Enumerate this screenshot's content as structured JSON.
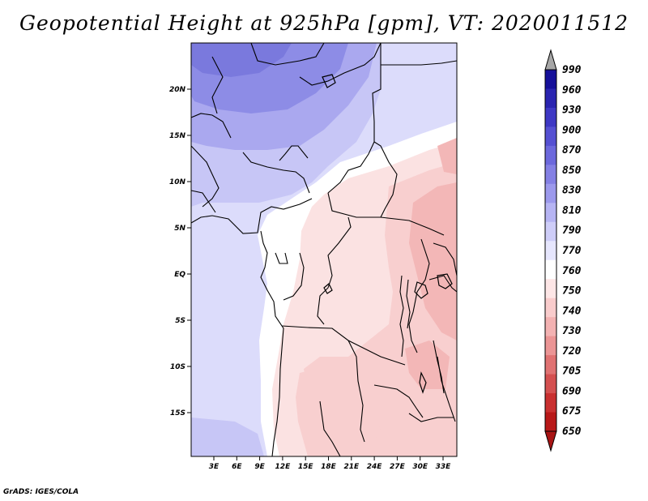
{
  "title": "Geopotential Height at 925hPa [gpm], VT: 2020011512",
  "credit": "GrADS: IGES/COLA",
  "lat_labels": [
    "20N",
    "15N",
    "10N",
    "5N",
    "EQ",
    "5S",
    "10S",
    "15S"
  ],
  "lon_labels": [
    "3E",
    "6E",
    "9E",
    "12E",
    "15E",
    "18E",
    "21E",
    "24E",
    "27E",
    "30E",
    "33E"
  ],
  "colorbar": {
    "labels": [
      "990",
      "960",
      "930",
      "900",
      "870",
      "850",
      "830",
      "810",
      "790",
      "770",
      "760",
      "750",
      "740",
      "730",
      "720",
      "705",
      "690",
      "675",
      "650"
    ],
    "colors": [
      "#16109a",
      "#2a24b0",
      "#3e38c4",
      "#5550d2",
      "#6c68dc",
      "#8480e4",
      "#9c99ec",
      "#b6b4f3",
      "#cecdf8",
      "#e6e6fd",
      "#ffffff",
      "#fde6e6",
      "#f9cccc",
      "#f3b2b2",
      "#eb9595",
      "#e07272",
      "#d45050",
      "#c93030",
      "#b81818"
    ],
    "top_arrow_color": "#a6a6a6",
    "bottom_arrow_color": "#a81414"
  },
  "palette": {
    "violet_deep": "#8d8ce6",
    "violet_mid": "#aaa8ef",
    "violet_light": "#c7c6f6",
    "lavender": "#dcdcfb",
    "white": "#ffffff",
    "pink_light": "#fbe2e2",
    "pink_mid": "#f8cfcf",
    "pink_deep": "#f3b7b7"
  }
}
